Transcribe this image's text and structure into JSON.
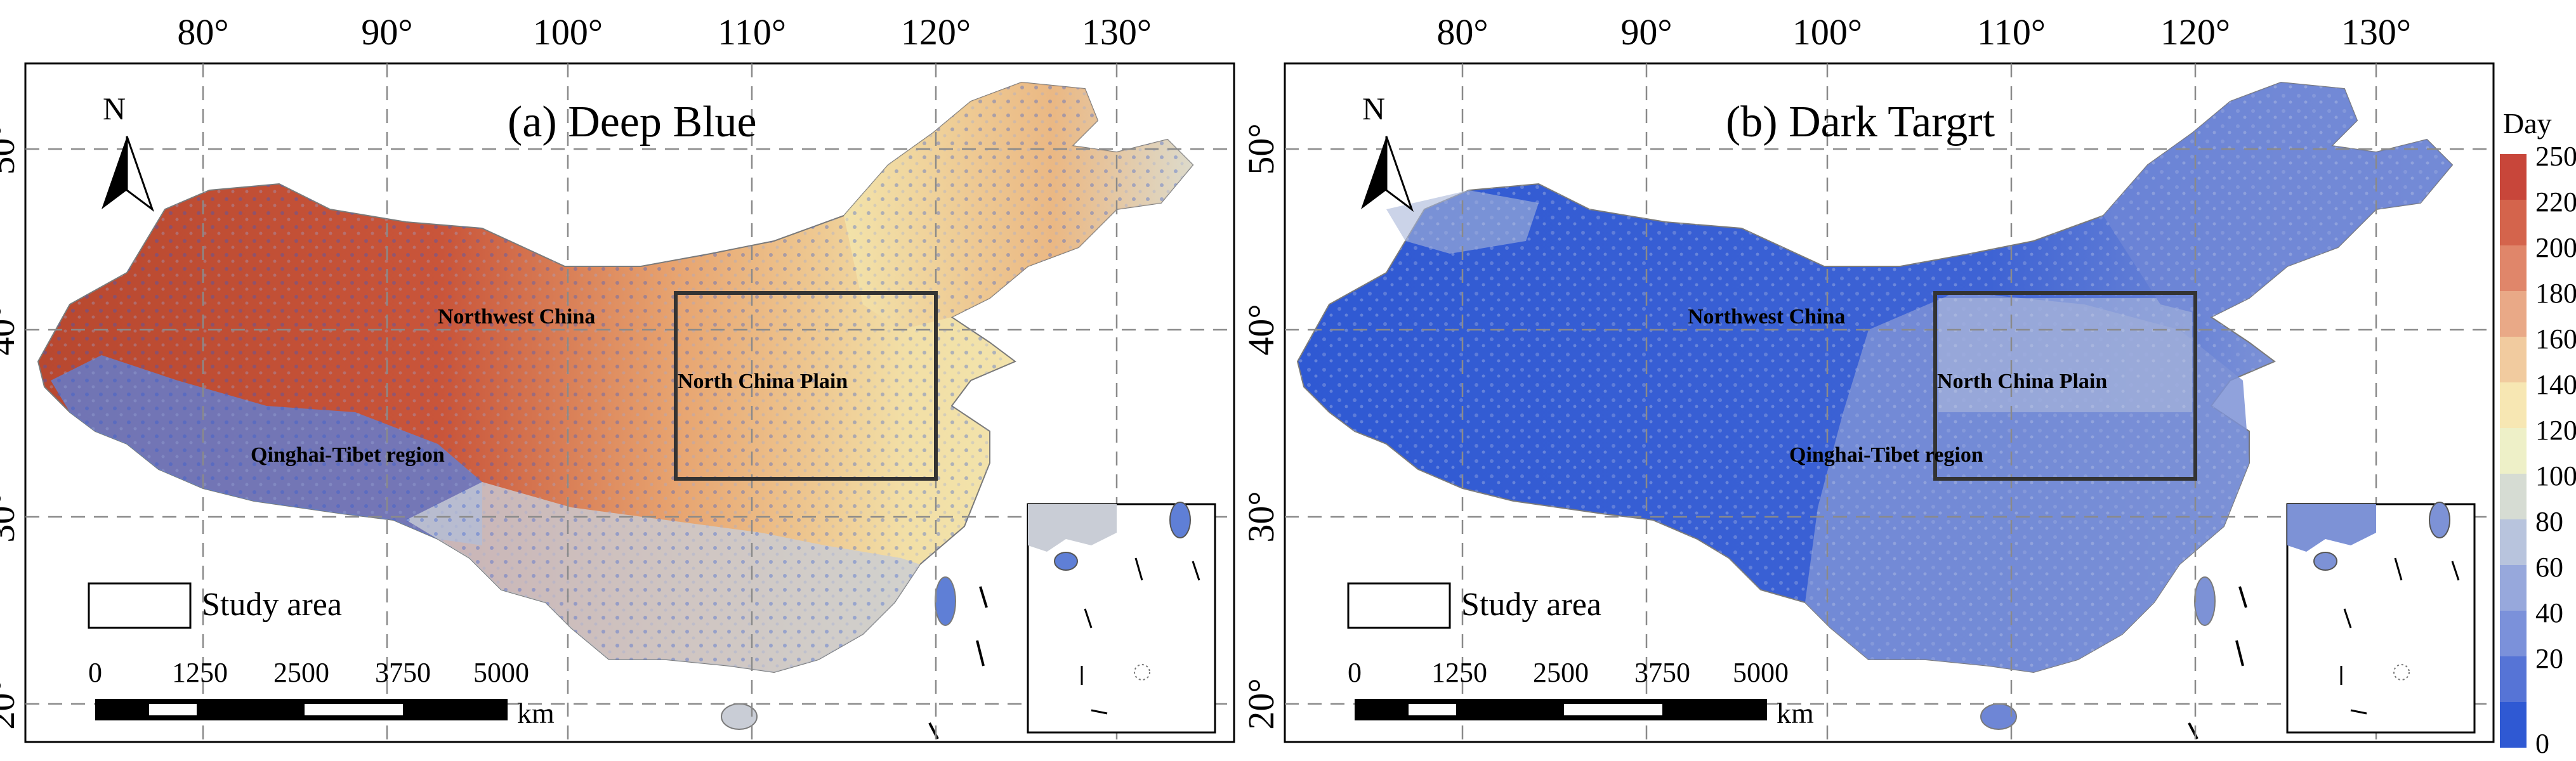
{
  "figure": {
    "panels": [
      {
        "title": "(a) Deep Blue",
        "series": "deep_blue",
        "regions": [
          "Northwest China",
          "North China Plain",
          "Qinghai-Tibet region"
        ],
        "legend_label": "Study area",
        "scale_bar": {
          "ticks": [
            "0",
            "1250",
            "2500",
            "3750",
            "5000"
          ],
          "unit": "km"
        }
      },
      {
        "title": "(b) Dark Targrt",
        "series": "dark_target",
        "regions": [
          "Northwest China",
          "North China Plain",
          "Qinghai-Tibet region"
        ],
        "legend_label": "Study area",
        "scale_bar": {
          "ticks": [
            "0",
            "1250",
            "2500",
            "3750",
            "5000"
          ],
          "unit": "km"
        }
      }
    ],
    "north_arrow_label": "N",
    "lon_ticks": [
      "80°",
      "90°",
      "100°",
      "110°",
      "120°",
      "130°"
    ],
    "lat_ticks": [
      "50°",
      "40°",
      "30°",
      "20°"
    ]
  },
  "colorbar": {
    "title": "Day",
    "ticks": [
      "250",
      "220",
      "200",
      "180",
      "160",
      "140",
      "120",
      "100",
      "80",
      "60",
      "40",
      "20",
      "0"
    ],
    "colors": [
      "#c8463a",
      "#d4644c",
      "#e0866a",
      "#e9a987",
      "#f1cb9f",
      "#f7e7b3",
      "#eef0c8",
      "#d6dcd3",
      "#b8c4dd",
      "#97a8dc",
      "#7b91da",
      "#5674d6",
      "#2f59d3"
    ]
  },
  "colors": {
    "china_outline": "#7a7a7a",
    "study_box": "#333333",
    "grid": "#8a8a8a"
  }
}
